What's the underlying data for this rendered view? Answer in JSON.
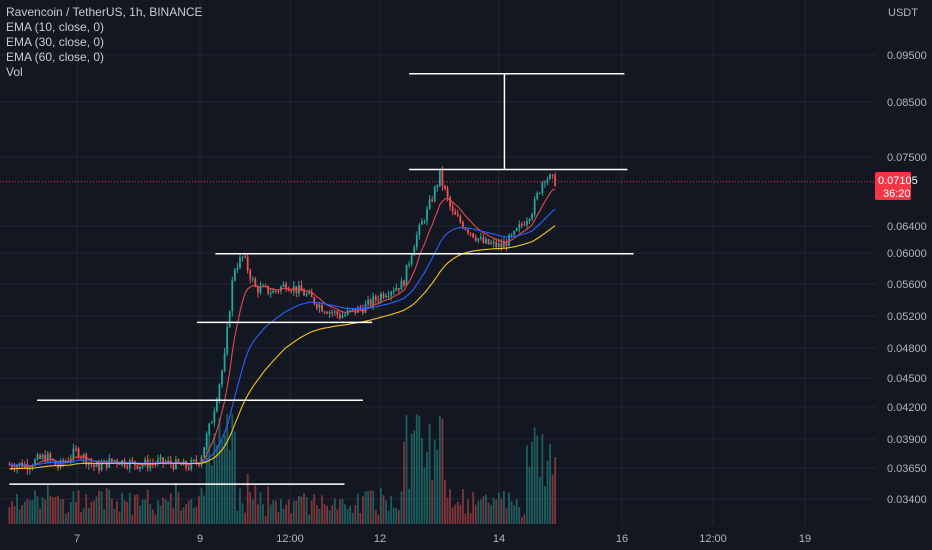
{
  "legend": {
    "title": "Ravencoin / TetherUS, 1h, BINANCE",
    "ema10": "EMA (10, close, 0)",
    "ema30": "EMA (30, close, 0)",
    "ema60": "EMA (60, close, 0)",
    "vol": "Vol"
  },
  "colors": {
    "background": "#131722",
    "up": "#26a69a",
    "down": "#ef5350",
    "ema10": "#e5484d",
    "ema30": "#2962ff",
    "ema60": "#f5c518",
    "drawing": "#ffffff",
    "axis_text": "#b2b5be",
    "price_badge": "#f23645"
  },
  "price_axis": {
    "unit": "USDT",
    "ticks": [
      "0.09500",
      "0.08500",
      "0.07500",
      "0.06400",
      "0.06000",
      "0.05600",
      "0.05200",
      "0.04800",
      "0.04500",
      "0.04200",
      "0.03900",
      "0.03650",
      "0.03400"
    ],
    "current_price": "0.07105",
    "countdown": "36:20"
  },
  "time_axis": {
    "ticks": [
      "7",
      "9",
      "12:00",
      "12",
      "14",
      "16",
      "12:00",
      "19"
    ]
  },
  "chart_data": {
    "type": "candlestick",
    "symbol": "Ravencoin / TetherUS",
    "interval": "1h",
    "exchange": "BINANCE",
    "indicators": [
      "EMA (10, close, 0)",
      "EMA (30, close, 0)",
      "EMA (60, close, 0)",
      "Vol"
    ],
    "y_ticks": [
      0.095,
      0.085,
      0.075,
      0.064,
      0.06,
      0.056,
      0.052,
      0.048,
      0.045,
      0.042,
      0.039,
      0.0365,
      0.034
    ],
    "price_path": [
      [
        6.2,
        0.0368
      ],
      [
        6.5,
        0.0375
      ],
      [
        6.7,
        0.0366
      ],
      [
        7.0,
        0.038
      ],
      [
        7.3,
        0.0365
      ],
      [
        7.6,
        0.0372
      ],
      [
        8.0,
        0.0368
      ],
      [
        8.4,
        0.037
      ],
      [
        8.8,
        0.0366
      ],
      [
        9.0,
        0.0372
      ],
      [
        9.2,
        0.041
      ],
      [
        9.4,
        0.047
      ],
      [
        9.55,
        0.058
      ],
      [
        9.7,
        0.0595
      ],
      [
        9.9,
        0.0555
      ],
      [
        10.2,
        0.055
      ],
      [
        10.4,
        0.056
      ],
      [
        10.7,
        0.0548
      ],
      [
        11.0,
        0.053
      ],
      [
        11.3,
        0.052
      ],
      [
        11.7,
        0.0532
      ],
      [
        12.0,
        0.055
      ],
      [
        12.3,
        0.056
      ],
      [
        12.5,
        0.062
      ],
      [
        12.7,
        0.0665
      ],
      [
        12.9,
        0.072
      ],
      [
        13.1,
        0.066
      ],
      [
        13.3,
        0.064
      ],
      [
        13.6,
        0.0615
      ],
      [
        13.9,
        0.061
      ],
      [
        14.1,
        0.0625
      ],
      [
        14.4,
        0.0665
      ],
      [
        14.6,
        0.072
      ],
      [
        14.8,
        0.071
      ]
    ],
    "horizontal_levels": [
      {
        "price": 0.091,
        "x_from": 12.4,
        "x_to": 15.9
      },
      {
        "price": 0.073,
        "x_from": 12.4,
        "x_to": 15.95
      },
      {
        "price": 0.0599,
        "x_from": 9.25,
        "x_to": 16.05
      },
      {
        "price": 0.0512,
        "x_from": 8.95,
        "x_to": 11.8
      },
      {
        "price": 0.0427,
        "x_from": 6.35,
        "x_to": 11.65
      },
      {
        "price": 0.0352,
        "x_from": 5.9,
        "x_to": 11.35
      }
    ],
    "measure_line": {
      "x": 13.95,
      "from_price": 0.073,
      "to_price": 0.091
    }
  }
}
